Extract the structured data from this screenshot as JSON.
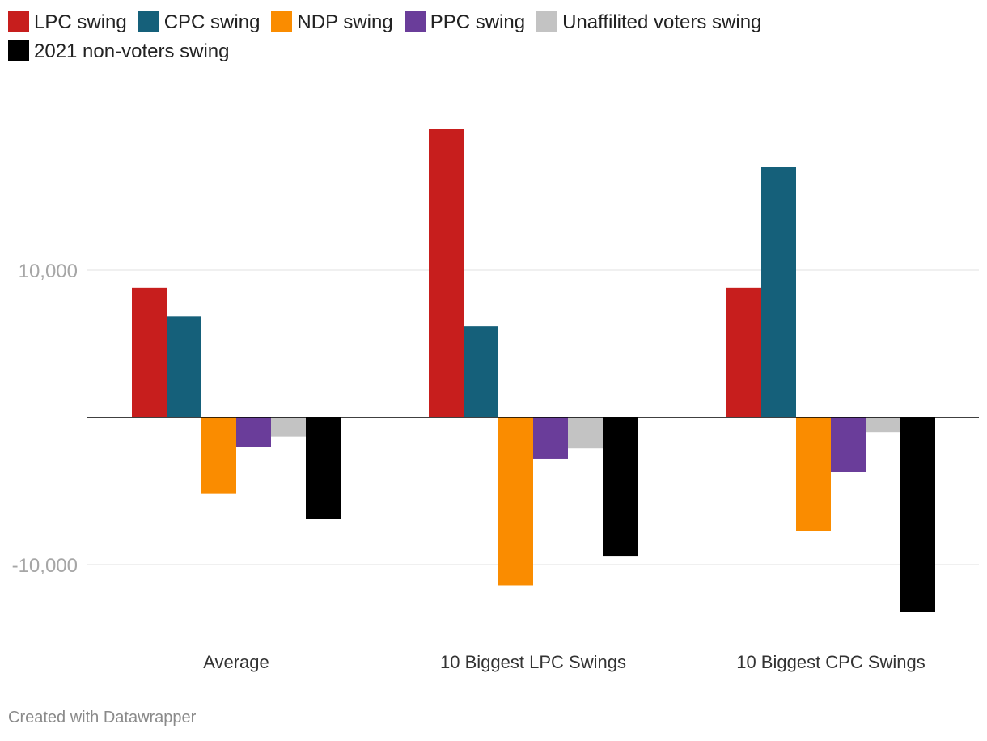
{
  "chart_data": {
    "type": "bar",
    "title": "",
    "xlabel": "",
    "ylabel": "",
    "ylim": [
      -14000,
      20500
    ],
    "yticks": [
      10000,
      -10000
    ],
    "ytick_labels": [
      "10,000",
      "-10,000"
    ],
    "categories": [
      "Average",
      "10 Biggest LPC Swings",
      "10 Biggest CPC Swings"
    ],
    "series": [
      {
        "name": "LPC swing",
        "color": "#c71e1d",
        "values": [
          8800,
          19600,
          8800
        ]
      },
      {
        "name": "CPC swing",
        "color": "#15607a",
        "values": [
          6850,
          6200,
          17000
        ]
      },
      {
        "name": "NDP swing",
        "color": "#fa8c00",
        "values": [
          -5200,
          -11400,
          -7700
        ]
      },
      {
        "name": "PPC swing",
        "color": "#6a3d9a",
        "values": [
          -2000,
          -2800,
          -3700
        ]
      },
      {
        "name": "Unaffilited voters swing",
        "color": "#c3c3c3",
        "values": [
          -1300,
          -2100,
          -1000
        ]
      },
      {
        "name": "2021 non-voters swing",
        "color": "#000000",
        "values": [
          -6900,
          -9400,
          -13200
        ]
      }
    ],
    "legend_position": "top"
  },
  "footer": {
    "credit": "Created with Datawrapper"
  }
}
